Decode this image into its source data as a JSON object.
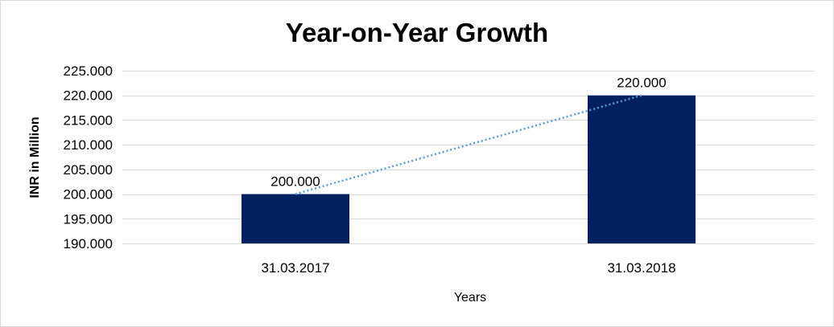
{
  "chart_data": {
    "type": "bar",
    "title": "Year-on-Year Growth",
    "xlabel": "Years",
    "ylabel": "INR in Million",
    "categories": [
      "31.03.2017",
      "31.03.2018"
    ],
    "values": [
      200,
      220
    ],
    "data_labels": [
      "200.000",
      "220.000"
    ],
    "ylim": [
      190,
      225
    ],
    "yticks": [
      190,
      195,
      200,
      205,
      210,
      215,
      220,
      225
    ],
    "ytick_labels": [
      "190.000",
      "195.000",
      "200.000",
      "205.000",
      "210.000",
      "215.000",
      "220.000",
      "225.000"
    ],
    "grid": true,
    "legend": "none",
    "trendline": "linear, dotted",
    "colors": {
      "bar": "#002060",
      "trendline": "#5B9BD5",
      "grid": "#d9d9d9"
    }
  }
}
